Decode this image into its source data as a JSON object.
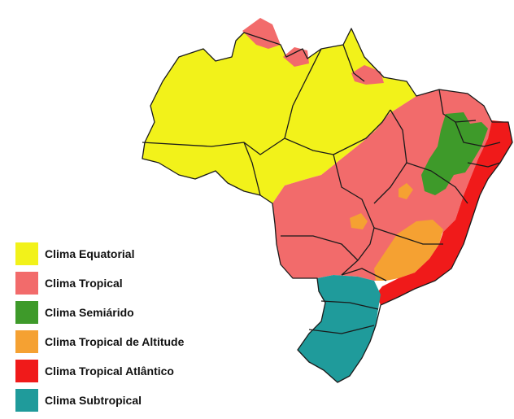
{
  "regions": [
    {
      "id": "equatorial",
      "label": "Clima Equatorial",
      "color": "#f2f21a"
    },
    {
      "id": "tropical",
      "label": "Clima Tropical",
      "color": "#f26b6b"
    },
    {
      "id": "semiarido",
      "label": "Clima Semiárido",
      "color": "#3e9a2a"
    },
    {
      "id": "tropical-altitude",
      "label": "Clima Tropical de Altitude",
      "color": "#f5a132"
    },
    {
      "id": "tropical-atlantico",
      "label": "Clima Tropical Atlântico",
      "color": "#f01a1a"
    },
    {
      "id": "subtropical",
      "label": "Clima Subtropical",
      "color": "#1f9b9b"
    }
  ]
}
